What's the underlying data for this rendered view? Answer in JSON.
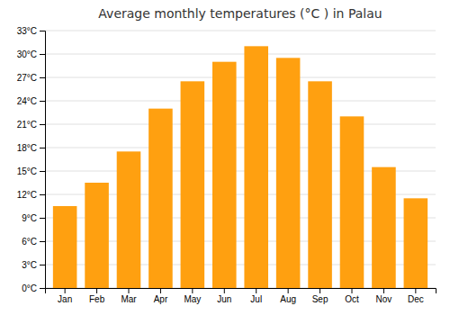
{
  "chart_data": {
    "type": "bar",
    "title": "Average monthly temperatures (°C ) in Palau",
    "categories": [
      "Jan",
      "Feb",
      "Mar",
      "Apr",
      "May",
      "Jun",
      "Jul",
      "Aug",
      "Sep",
      "Oct",
      "Nov",
      "Dec"
    ],
    "values": [
      10.5,
      13.5,
      17.5,
      23.0,
      26.5,
      29.0,
      31.0,
      29.5,
      26.5,
      22.0,
      15.5,
      11.5
    ],
    "color": "#FFA010",
    "ylim": [
      0,
      33
    ],
    "yticks": [
      {
        "value": 0,
        "label": "0°C"
      },
      {
        "value": 3,
        "label": "3°C"
      },
      {
        "value": 6,
        "label": "6°C"
      },
      {
        "value": 9,
        "label": "9°C"
      },
      {
        "value": 12,
        "label": "12°C"
      },
      {
        "value": 15,
        "label": "15°C"
      },
      {
        "value": 18,
        "label": "18°C"
      },
      {
        "value": 21,
        "label": "21°C"
      },
      {
        "value": 24,
        "label": "24°C"
      },
      {
        "value": 27,
        "label": "27°C"
      },
      {
        "value": 30,
        "label": "30°C"
      },
      {
        "value": 33,
        "label": "33°C"
      }
    ],
    "grid": true
  }
}
